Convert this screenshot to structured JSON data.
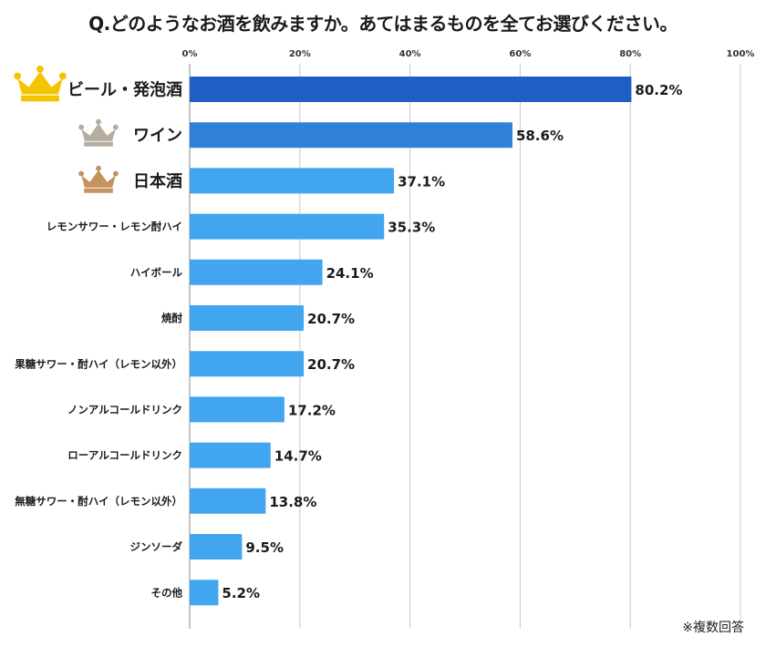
{
  "title": "Q.どのようなお酒を飲みますか。あてはまるものを全てお選びください。",
  "footnote": "※複数回答",
  "colors": {
    "first": "#1f5fc4",
    "second": "#2f80d8",
    "rest": "#42a5ef",
    "gold": "#f4c400",
    "silver": "#b7aca0",
    "bronze": "#c4915f",
    "grid": "#c9c9c9"
  },
  "chart_data": {
    "type": "bar",
    "orientation": "horizontal",
    "categories": [
      "ビール・発泡酒",
      "ワイン",
      "日本酒",
      "レモンサワー・レモン酎ハイ",
      "ハイボール",
      "焼酎",
      "果糖サワー・酎ハイ（レモン以外）",
      "ノンアルコールドリンク",
      "ローアルコールドリンク",
      "無糖サワー・酎ハイ（レモン以外）",
      "ジンソーダ",
      "その他"
    ],
    "values": [
      80.2,
      58.6,
      37.1,
      35.3,
      24.1,
      20.7,
      20.7,
      17.2,
      14.7,
      13.8,
      9.5,
      5.2
    ],
    "value_labels": [
      "80.2%",
      "58.6%",
      "37.1%",
      "35.3%",
      "24.1%",
      "20.7%",
      "20.7%",
      "17.2%",
      "14.7%",
      "13.8%",
      "9.5%",
      "5.2%"
    ],
    "xlim": [
      0,
      100
    ],
    "xticks": [
      0,
      20,
      40,
      60,
      80,
      100
    ],
    "xtick_labels": [
      "0%",
      "20%",
      "40%",
      "60%",
      "80%",
      "100%"
    ],
    "axis_position": "top",
    "grid": true,
    "rank_icons": [
      "crown-gold",
      "crown-silver",
      "crown-bronze"
    ]
  }
}
